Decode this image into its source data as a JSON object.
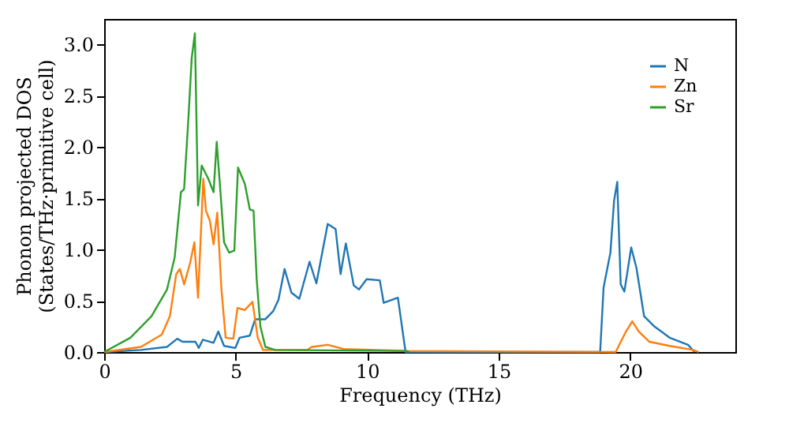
{
  "chart_data": {
    "type": "line",
    "xlabel": "Frequency (THz)",
    "ylabel": "Phonon projected DOS\n(States/THz·primitive cell)",
    "xlim": [
      0,
      24
    ],
    "ylim": [
      0,
      3.25
    ],
    "xticks": [
      0,
      5,
      10,
      15,
      20
    ],
    "yticks": [
      {
        "value": 0,
        "label": "0.0"
      },
      {
        "value": 0.5,
        "label": "0.5"
      },
      {
        "value": 1,
        "label": "1.0"
      },
      {
        "value": 1.5,
        "label": "1.5"
      },
      {
        "value": 2,
        "label": "2.0"
      },
      {
        "value": 2.5,
        "label": "2.5"
      },
      {
        "value": 3,
        "label": "3.0"
      }
    ],
    "grid": false,
    "legend": "top right",
    "marker": "none",
    "line_style": "solid",
    "series": [
      {
        "name": "N",
        "color": "#1f77b4",
        "x": [
          0,
          1.4,
          2.39,
          2.78,
          2.98,
          3.47,
          3.6,
          3.75,
          4.16,
          4.34,
          4.56,
          4.99,
          5.15,
          5.54,
          5.74,
          6.13,
          6.43,
          6.63,
          6.86,
          7.12,
          7.42,
          7.81,
          8.07,
          8.5,
          8.8,
          8.99,
          9.19,
          9.49,
          9.69,
          9.98,
          10.48,
          10.63,
          11.17,
          11.46,
          18.86,
          18.99,
          19.25,
          19.39,
          19.51,
          19.64,
          19.78,
          20.04,
          20.24,
          20.53,
          20.92,
          21.5,
          22.2,
          22.45
        ],
        "values": [
          0,
          0.02,
          0.05,
          0.13,
          0.1,
          0.1,
          0.04,
          0.12,
          0.09,
          0.2,
          0.06,
          0.04,
          0.14,
          0.16,
          0.32,
          0.32,
          0.4,
          0.51,
          0.81,
          0.58,
          0.52,
          0.88,
          0.67,
          1.25,
          1.2,
          0.76,
          1.06,
          0.65,
          0.61,
          0.71,
          0.7,
          0.48,
          0.53,
          0,
          0,
          0.63,
          0.97,
          1.48,
          1.66,
          0.66,
          0.59,
          1.02,
          0.82,
          0.35,
          0.25,
          0.14,
          0.07,
          0
        ]
      },
      {
        "name": "Zn",
        "color": "#ff7f0e",
        "x": [
          0,
          1.4,
          2.19,
          2.5,
          2.74,
          2.88,
          3.04,
          3.27,
          3.43,
          3.57,
          3.77,
          3.87,
          4.02,
          4.16,
          4.3,
          4.46,
          4.62,
          4.91,
          5.07,
          5.35,
          5.64,
          5.84,
          6.04,
          7.71,
          7.9,
          8.5,
          9.1,
          11.5,
          19.45,
          19.84,
          20.08,
          20.33,
          20.73,
          21.5,
          22.4,
          22.6
        ],
        "values": [
          0,
          0.05,
          0.17,
          0.35,
          0.76,
          0.81,
          0.66,
          0.87,
          1.07,
          0.53,
          1.69,
          1.38,
          1.28,
          1.05,
          1.36,
          0.61,
          0.14,
          0.13,
          0.43,
          0.41,
          0.49,
          0.14,
          0.02,
          0.02,
          0.05,
          0.07,
          0.03,
          0.01,
          0,
          0.2,
          0.3,
          0.2,
          0.1,
          0.06,
          0.02,
          0
        ]
      },
      {
        "name": "Sr",
        "color": "#2ca02c",
        "x": [
          0,
          1.0,
          1.8,
          2.39,
          2.68,
          2.92,
          3.04,
          3.21,
          3.33,
          3.45,
          3.57,
          3.71,
          3.96,
          4.16,
          4.28,
          4.4,
          4.56,
          4.75,
          4.95,
          5.09,
          5.35,
          5.54,
          5.68,
          5.8,
          5.94,
          6.13,
          6.5,
          11.5,
          11.6
        ],
        "values": [
          0,
          0.14,
          0.35,
          0.61,
          0.92,
          1.56,
          1.59,
          2.31,
          2.87,
          3.11,
          1.43,
          1.82,
          1.69,
          1.56,
          2.05,
          1.64,
          1.07,
          0.97,
          0.99,
          1.8,
          1.64,
          1.39,
          1.38,
          0.71,
          0.25,
          0.05,
          0.02,
          0.01,
          0
        ]
      }
    ]
  }
}
